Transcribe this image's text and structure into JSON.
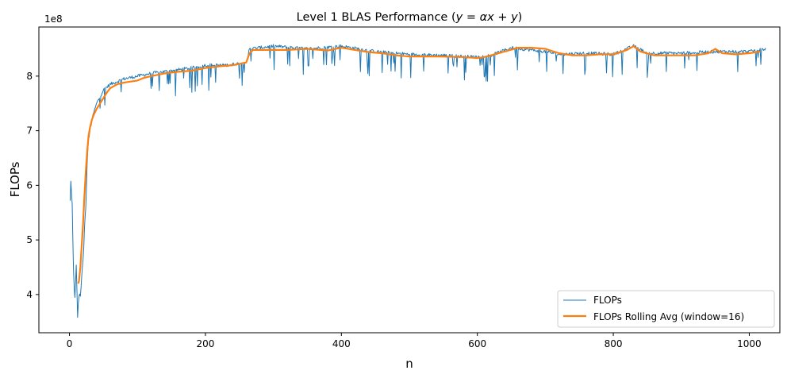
{
  "chart_data": {
    "type": "line",
    "title": "Level 1 BLAS Performance (y = αx + y)",
    "title_math": "y = αx + y",
    "xlabel": "n",
    "ylabel": "FLOPs",
    "y_scale_label": "1e8",
    "xlim": [
      -45,
      1045
    ],
    "ylim": [
      3.3,
      8.9
    ],
    "x_ticks": [
      0,
      200,
      400,
      600,
      800,
      1000
    ],
    "x_tick_labels": [
      "0",
      "200",
      "400",
      "600",
      "800",
      "1000"
    ],
    "y_ticks": [
      4,
      5,
      6,
      7,
      8
    ],
    "y_tick_labels": [
      "4",
      "5",
      "6",
      "7",
      "8"
    ],
    "grid": false,
    "legend_position": "lower-right",
    "series": [
      {
        "name": "FLOPs",
        "color": "#1f77b4",
        "style": "thin-line",
        "x_range": [
          1,
          1024
        ],
        "anchors": {
          "x": [
            1,
            2,
            4,
            6,
            8,
            10,
            12,
            14,
            16,
            18,
            20,
            22,
            24,
            26,
            28,
            30,
            35,
            40,
            50,
            60,
            70,
            80,
            100,
            120,
            150,
            180,
            200,
            230,
            260,
            265,
            300,
            350,
            400,
            450,
            500,
            550,
            600,
            620,
            650,
            700,
            720,
            760,
            800,
            830,
            850,
            900,
            950,
            1000,
            1024
          ],
          "y": [
            5.7,
            6.1,
            5.6,
            4.4,
            3.9,
            4.5,
            3.6,
            4.0,
            4.0,
            4.3,
            4.6,
            5.2,
            5.6,
            6.4,
            6.8,
            7.0,
            7.3,
            7.5,
            7.75,
            7.85,
            7.9,
            7.95,
            8.0,
            8.05,
            8.1,
            8.15,
            8.2,
            8.2,
            8.25,
            8.5,
            8.55,
            8.5,
            8.55,
            8.45,
            8.4,
            8.38,
            8.35,
            8.38,
            8.52,
            8.45,
            8.4,
            8.42,
            8.4,
            8.55,
            8.42,
            8.42,
            8.45,
            8.45,
            8.5
          ]
        }
      },
      {
        "name": "FLOPs Rolling Avg (window=16)",
        "color": "#ff7f0e",
        "style": "thick-line",
        "x": [
          13,
          14,
          16,
          18,
          20,
          22,
          24,
          26,
          28,
          30,
          33,
          36,
          40,
          45,
          50,
          55,
          60,
          70,
          80,
          90,
          100,
          110,
          120,
          140,
          160,
          180,
          200,
          220,
          240,
          260,
          265,
          270,
          290,
          320,
          350,
          380,
          400,
          420,
          440,
          460,
          480,
          500,
          540,
          580,
          600,
          610,
          620,
          640,
          660,
          680,
          700,
          720,
          740,
          760,
          780,
          800,
          820,
          830,
          840,
          860,
          880,
          900,
          920,
          940,
          950,
          960,
          980,
          1000,
          1016
        ],
        "y": [
          4.2,
          4.25,
          4.5,
          4.9,
          5.3,
          5.8,
          6.25,
          6.6,
          6.9,
          7.05,
          7.2,
          7.3,
          7.4,
          7.5,
          7.6,
          7.7,
          7.78,
          7.85,
          7.88,
          7.9,
          7.92,
          7.97,
          8.0,
          8.05,
          8.08,
          8.1,
          8.15,
          8.18,
          8.2,
          8.25,
          8.42,
          8.48,
          8.48,
          8.48,
          8.5,
          8.47,
          8.52,
          8.48,
          8.44,
          8.42,
          8.38,
          8.36,
          8.36,
          8.35,
          8.33,
          8.35,
          8.38,
          8.45,
          8.52,
          8.52,
          8.5,
          8.42,
          8.38,
          8.38,
          8.4,
          8.4,
          8.48,
          8.55,
          8.45,
          8.38,
          8.38,
          8.38,
          8.38,
          8.42,
          8.5,
          8.42,
          8.4,
          8.42,
          8.45
        ]
      }
    ]
  }
}
